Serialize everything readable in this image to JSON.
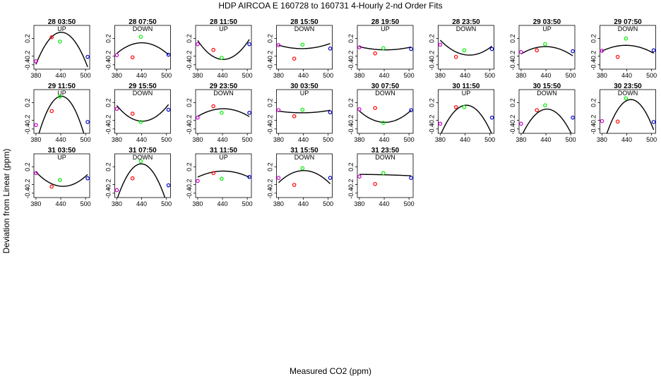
{
  "chart_data": {
    "type": "scatter",
    "title": "HDP   AIRCOA E   160728 to 160731   4-Hourly 2-nd Order Fits",
    "xlabel": "Measured CO2 (ppm)",
    "ylabel": "Deviation from Linear (ppm)",
    "xlim": [
      375,
      510
    ],
    "ylim": [
      -0.5,
      0.5
    ],
    "x_ticks": [
      380,
      440,
      500
    ],
    "y_ticks": [
      0.2,
      -0.2,
      -0.4
    ],
    "marker_colors": {
      "point1": "#cc00cc",
      "point2": "#ff0000",
      "point3": "#00ee00",
      "point4": "#0000cc",
      "fit": "#000000"
    },
    "panels": [
      {
        "title": "28 03:50",
        "direction": "UP",
        "x": [
          380,
          418,
          438,
          505
        ],
        "y": [
          -0.32,
          0.23,
          0.13,
          -0.22
        ],
        "fit": [
          -0.000195,
          0.1721,
          -37.63
        ]
      },
      {
        "title": "28 07:50",
        "direction": "DOWN",
        "x": [
          380,
          418,
          438,
          505
        ],
        "y": [
          -0.18,
          -0.23,
          0.24,
          -0.17
        ],
        "fit": [
          -6.59e-05,
          0.05807,
          -12.69
        ]
      },
      {
        "title": "28 11:50",
        "direction": "UP",
        "x": [
          380,
          418,
          438,
          505
        ],
        "y": [
          0.07,
          -0.06,
          -0.24,
          0.07
        ],
        "fit": [
          0.000114,
          -0.1007,
          21.96
        ]
      },
      {
        "title": "28 15:50",
        "direction": "DOWN",
        "x": [
          380,
          418,
          438,
          505
        ],
        "y": [
          0.05,
          -0.26,
          0.06,
          -0.03
        ],
        "fit": [
          2.49e-05,
          -0.02173,
          4.71
        ]
      },
      {
        "title": "28 19:50",
        "direction": "UP",
        "x": [
          380,
          418,
          438,
          505
        ],
        "y": [
          0.0,
          -0.14,
          -0.02,
          -0.04
        ],
        "fit": [
          1.76e-05,
          -0.01563,
          3.411
        ]
      },
      {
        "title": "28 23:50",
        "direction": "DOWN",
        "x": [
          380,
          418,
          438,
          505
        ],
        "y": [
          0.06,
          -0.22,
          -0.07,
          -0.04
        ],
        "fit": [
          6.88e-05,
          -0.06198,
          13.78
        ]
      },
      {
        "title": "29 03:50",
        "direction": "UP",
        "x": [
          380,
          418,
          438,
          505
        ],
        "y": [
          -0.11,
          -0.07,
          0.07,
          -0.09
        ],
        "fit": [
          -4.84e-05,
          0.04249,
          -9.31
        ]
      },
      {
        "title": "29 07:50",
        "direction": "DOWN",
        "x": [
          380,
          418,
          438,
          505
        ],
        "y": [
          -0.08,
          -0.22,
          0.2,
          -0.07
        ],
        "fit": [
          -3.97e-05,
          0.03475,
          -7.56
        ]
      },
      {
        "title": "29 11:50",
        "direction": "UP",
        "x": [
          380,
          418,
          438,
          505
        ],
        "y": [
          -0.31,
          0.01,
          0.34,
          -0.24
        ],
        "fit": [
          -0.000289,
          0.2552,
          -55.99
        ]
      },
      {
        "title": "29 15:50",
        "direction": "DOWN",
        "x": [
          380,
          418,
          438,
          505
        ],
        "y": [
          0.06,
          -0.05,
          -0.24,
          0.04
        ],
        "fit": [
          9.42e-05,
          -0.0832,
          18.15
        ]
      },
      {
        "title": "29 23:50",
        "direction": "DOWN",
        "x": [
          380,
          418,
          438,
          505
        ],
        "y": [
          -0.14,
          0.12,
          -0.03,
          -0.03
        ],
        "fit": [
          -4.56e-05,
          0.04032,
          -8.85
        ]
      },
      {
        "title": "30 03:50",
        "direction": "UP",
        "x": [
          380,
          418,
          438,
          505
        ],
        "y": [
          0.03,
          -0.11,
          0.04,
          -0.02
        ],
        "fit": [
          1.23e-05,
          -0.01073,
          2.31
        ]
      },
      {
        "title": "30 07:50",
        "direction": "DOWN",
        "x": [
          380,
          418,
          438,
          505
        ],
        "y": [
          0.05,
          0.08,
          -0.26,
          0.03
        ],
        "fit": [
          6.83e-05,
          -0.06032,
          13.07
        ]
      },
      {
        "title": "30 11:50",
        "direction": "UP",
        "x": [
          380,
          418,
          438,
          505
        ],
        "y": [
          -0.28,
          0.1,
          0.1,
          -0.14
        ],
        "fit": [
          -0.000174,
          0.1542,
          -34.02
        ]
      },
      {
        "title": "30 15:50",
        "direction": "DOWN",
        "x": [
          380,
          418,
          438,
          505
        ],
        "y": [
          -0.28,
          0.03,
          0.14,
          -0.14
        ],
        "fit": [
          -0.000162,
          0.1434,
          -31.68
        ]
      },
      {
        "title": "30 23:50",
        "direction": "DOWN",
        "x": [
          380,
          418,
          438,
          505
        ],
        "y": [
          -0.22,
          -0.23,
          0.3,
          -0.24
        ],
        "fit": [
          -0.000229,
          0.2061,
          -46.1
        ]
      },
      {
        "title": "31 03:50",
        "direction": "UP",
        "x": [
          380,
          418,
          438,
          505
        ],
        "y": [
          0.06,
          -0.25,
          -0.1,
          -0.06
        ],
        "fit": [
          7.67e-05,
          -0.06834,
          14.98
        ]
      },
      {
        "title": "31 07:50",
        "direction": "DOWN",
        "x": [
          380,
          418,
          438,
          505
        ],
        "y": [
          -0.33,
          -0.06,
          0.33,
          -0.22
        ],
        "fit": [
          -0.000235,
          0.2064,
          -45.05
        ]
      },
      {
        "title": "31 11:50",
        "direction": "UP",
        "x": [
          380,
          418,
          438,
          505
        ],
        "y": [
          -0.12,
          0.06,
          -0.07,
          -0.03
        ],
        "fit": [
          -3.58e-05,
          0.03165,
          -6.89
        ]
      },
      {
        "title": "31 15:50",
        "direction": "DOWN",
        "x": [
          380,
          418,
          438,
          505
        ],
        "y": [
          -0.05,
          -0.21,
          0.17,
          -0.05
        ],
        "fit": [
          -7.39e-05,
          0.06519,
          -14.26
        ]
      },
      {
        "title": "31 23:50",
        "direction": "DOWN",
        "x": [
          380,
          418,
          438,
          505
        ],
        "y": [
          -0.02,
          -0.19,
          0.06,
          -0.05
        ],
        "fit": [
          -1.7e-06,
          0.00125,
          -0.2
        ]
      }
    ]
  }
}
